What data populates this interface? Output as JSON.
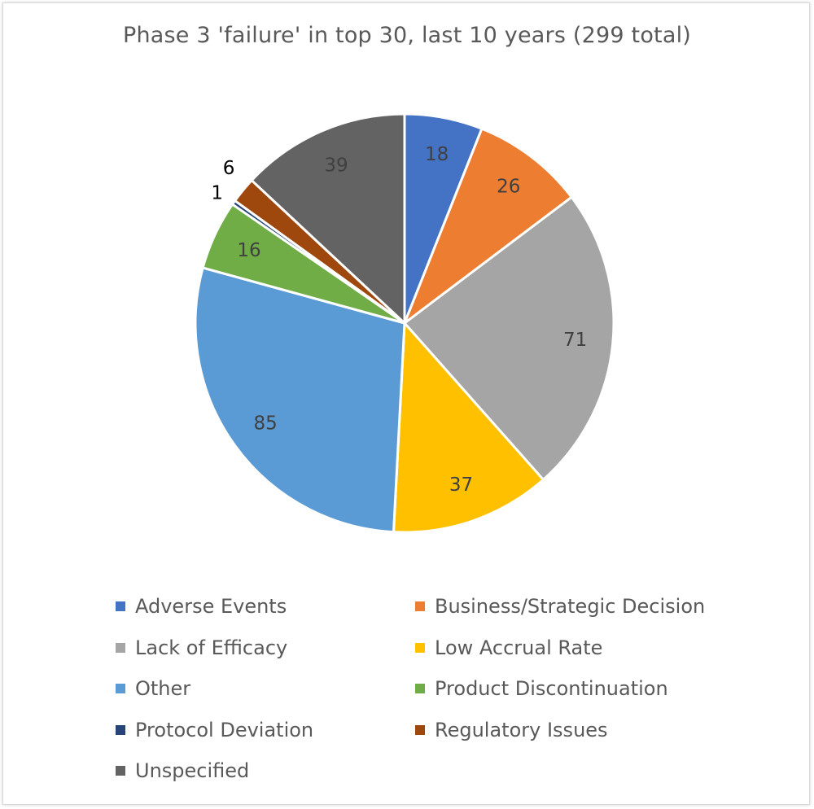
{
  "chart_data": {
    "type": "pie",
    "title": "Phase 3 'failure' in top 30, last 10 years (299 total)",
    "slices": [
      {
        "label": "Adverse Events",
        "value": 18,
        "color": "#4472C4"
      },
      {
        "label": "Business/Strategic Decision",
        "value": 26,
        "color": "#ED7D31"
      },
      {
        "label": "Lack of Efficacy",
        "value": 71,
        "color": "#A5A5A5"
      },
      {
        "label": "Low Accrual Rate",
        "value": 37,
        "color": "#FFC000"
      },
      {
        "label": "Other",
        "value": 85,
        "color": "#5B9BD5"
      },
      {
        "label": "Product Discontinuation",
        "value": 16,
        "color": "#70AD47"
      },
      {
        "label": "Protocol Deviation",
        "value": 1,
        "color": "#264478"
      },
      {
        "label": "Regulatory Issues",
        "value": 6,
        "color": "#9E480E"
      },
      {
        "label": "Unspecified",
        "value": 39,
        "color": "#636363"
      }
    ],
    "legend_position": "bottom"
  }
}
